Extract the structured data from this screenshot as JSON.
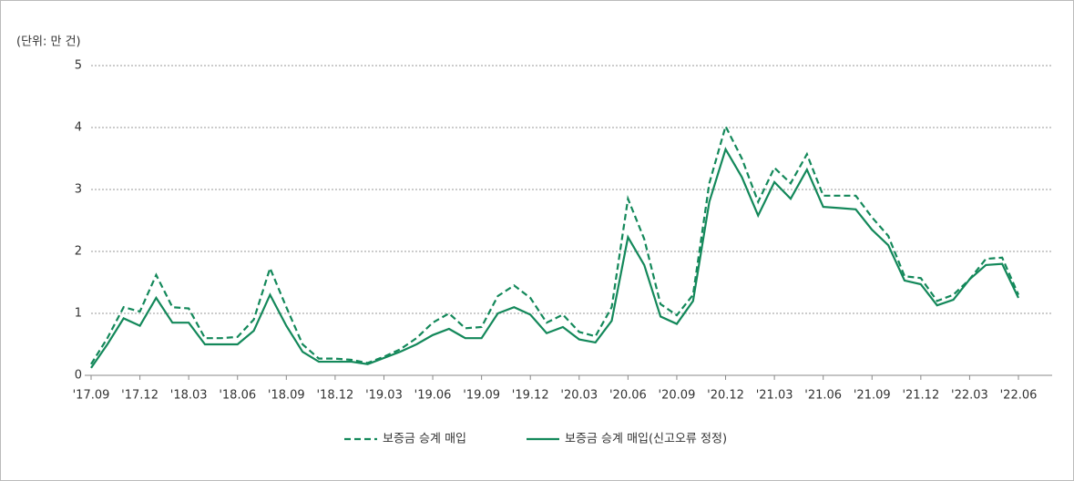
{
  "chart_data": {
    "type": "line",
    "unit_label": "(단위: 만 건)",
    "categories": [
      "'17.09",
      null,
      null,
      "'17.12",
      null,
      null,
      "'18.03",
      null,
      null,
      "'18.06",
      null,
      null,
      "'18.09",
      null,
      null,
      "'18.12",
      null,
      null,
      "'19.03",
      null,
      null,
      "'19.06",
      null,
      null,
      "'19.09",
      null,
      null,
      "'19.12",
      null,
      null,
      "'20.03",
      null,
      null,
      "'20.06",
      null,
      null,
      "'20.09",
      null,
      null,
      "'20.12",
      null,
      null,
      "'21.03",
      null,
      null,
      "'21.06",
      null,
      null,
      "'21.09",
      null,
      null,
      "'21.12",
      null,
      null,
      "'22.03",
      null,
      null,
      "'22.06"
    ],
    "series": [
      {
        "name": "보증금 승계 매입",
        "color": "#13885a",
        "dash": true,
        "values": [
          0.18,
          0.6,
          1.1,
          1.03,
          1.62,
          1.1,
          1.08,
          0.6,
          0.6,
          0.62,
          0.9,
          1.73,
          1.1,
          0.5,
          0.27,
          0.27,
          0.25,
          0.2,
          0.3,
          0.42,
          0.6,
          0.85,
          1.0,
          0.76,
          0.78,
          1.28,
          1.45,
          1.25,
          0.85,
          0.98,
          0.7,
          0.63,
          1.1,
          2.85,
          2.2,
          1.15,
          0.97,
          1.3,
          3.1,
          4.02,
          3.5,
          2.8,
          3.35,
          3.1,
          3.57,
          2.9,
          2.9,
          2.9,
          2.55,
          2.25,
          1.6,
          1.57,
          1.2,
          1.3,
          1.55,
          1.88,
          1.9,
          1.3
        ]
      },
      {
        "name": "보증금 승계 매입(신고오류 정정)",
        "color": "#13885a",
        "dash": false,
        "values": [
          0.12,
          0.5,
          0.92,
          0.8,
          1.25,
          0.85,
          0.85,
          0.5,
          0.5,
          0.5,
          0.72,
          1.3,
          0.8,
          0.38,
          0.22,
          0.22,
          0.22,
          0.18,
          0.28,
          0.38,
          0.5,
          0.65,
          0.75,
          0.6,
          0.6,
          1.0,
          1.1,
          0.98,
          0.68,
          0.78,
          0.58,
          0.53,
          0.88,
          2.23,
          1.78,
          0.95,
          0.83,
          1.2,
          2.8,
          3.65,
          3.2,
          2.58,
          3.12,
          2.85,
          3.32,
          2.72,
          2.7,
          2.68,
          2.35,
          2.1,
          1.53,
          1.47,
          1.13,
          1.22,
          1.55,
          1.78,
          1.8,
          1.25
        ]
      }
    ],
    "ylim": [
      0,
      5
    ],
    "yticks": [
      0,
      1,
      2,
      3,
      4,
      5
    ],
    "grid": true
  }
}
